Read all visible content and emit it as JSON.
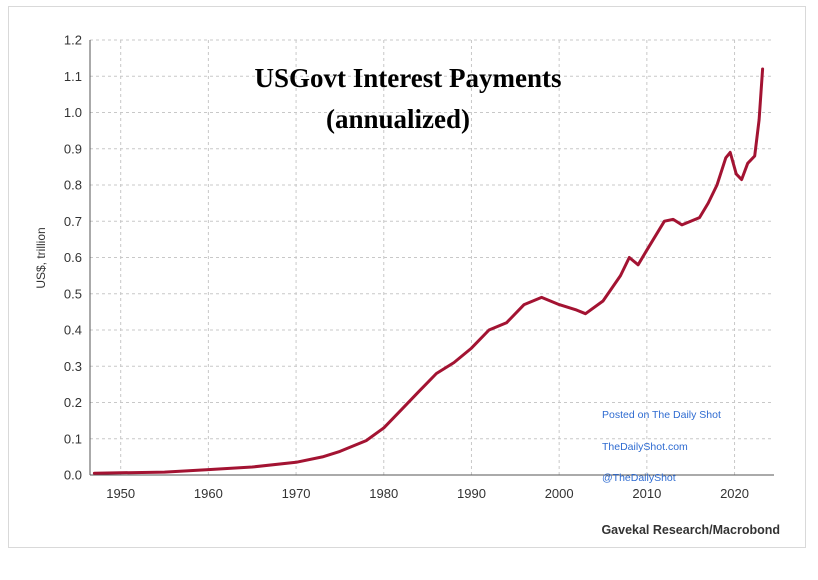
{
  "chart_data": {
    "type": "line",
    "title_line1": "USGovt Interest Payments",
    "title_line2": "(annualized)",
    "ylabel": "US$, trillion",
    "source": "Gavekal Research/Macrobond",
    "watermark": [
      "Posted on The Daily Shot",
      "TheDailyShot.com",
      "@TheDailyShot"
    ],
    "xlim": [
      1946.5,
      2024.5
    ],
    "ylim": [
      0,
      1.2
    ],
    "x_ticks": [
      "1950",
      "1960",
      "1970",
      "1980",
      "1990",
      "2000",
      "2010",
      "2020"
    ],
    "y_ticks": [
      "0.0",
      "0.1",
      "0.2",
      "0.3",
      "0.4",
      "0.5",
      "0.6",
      "0.7",
      "0.8",
      "0.9",
      "1.0",
      "1.1",
      "1.2"
    ],
    "grid": true,
    "series": [
      {
        "color": "#a31332",
        "points": [
          [
            1947,
            0.005
          ],
          [
            1950,
            0.006
          ],
          [
            1955,
            0.008
          ],
          [
            1960,
            0.015
          ],
          [
            1965,
            0.022
          ],
          [
            1970,
            0.035
          ],
          [
            1973,
            0.05
          ],
          [
            1975,
            0.065
          ],
          [
            1978,
            0.095
          ],
          [
            1980,
            0.13
          ],
          [
            1982,
            0.18
          ],
          [
            1984,
            0.23
          ],
          [
            1986,
            0.28
          ],
          [
            1988,
            0.31
          ],
          [
            1990,
            0.35
          ],
          [
            1992,
            0.4
          ],
          [
            1994,
            0.42
          ],
          [
            1996,
            0.47
          ],
          [
            1998,
            0.49
          ],
          [
            2000,
            0.47
          ],
          [
            2002,
            0.455
          ],
          [
            2003,
            0.445
          ],
          [
            2005,
            0.48
          ],
          [
            2007,
            0.55
          ],
          [
            2008,
            0.6
          ],
          [
            2009,
            0.58
          ],
          [
            2010,
            0.62
          ],
          [
            2012,
            0.7
          ],
          [
            2013,
            0.705
          ],
          [
            2014,
            0.69
          ],
          [
            2016,
            0.71
          ],
          [
            2017,
            0.75
          ],
          [
            2018,
            0.8
          ],
          [
            2019,
            0.875
          ],
          [
            2019.5,
            0.89
          ],
          [
            2020.2,
            0.83
          ],
          [
            2020.8,
            0.815
          ],
          [
            2021.5,
            0.86
          ],
          [
            2022.3,
            0.88
          ],
          [
            2022.8,
            0.98
          ],
          [
            2023.2,
            1.12
          ]
        ]
      }
    ]
  }
}
